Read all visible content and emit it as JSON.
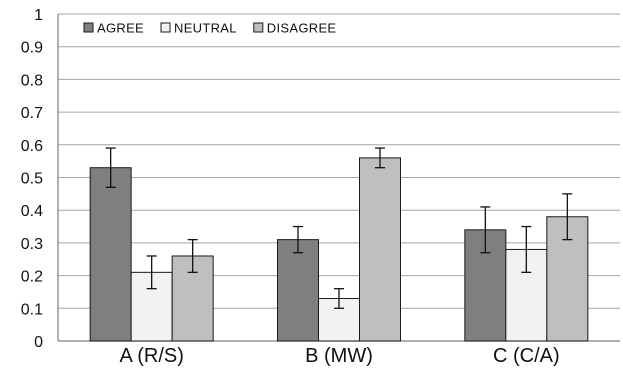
{
  "chart_data": {
    "type": "bar",
    "categories": [
      "A (R/S)",
      "B (MW)",
      "C (C/A)"
    ],
    "series": [
      {
        "name": "AGREE",
        "color": "#7f7f7f",
        "values": [
          0.53,
          0.31,
          0.34
        ],
        "error": [
          0.06,
          0.04,
          0.07
        ]
      },
      {
        "name": "NEUTRAL",
        "color": "#f2f2f2",
        "values": [
          0.21,
          0.13,
          0.28
        ],
        "error": [
          0.05,
          0.03,
          0.07
        ]
      },
      {
        "name": "DISAGREE",
        "color": "#bfbfbf",
        "values": [
          0.26,
          0.56,
          0.38
        ],
        "error": [
          0.05,
          0.03,
          0.07
        ]
      }
    ],
    "yticks": [
      "0",
      "0.1",
      "0.2",
      "0.3",
      "0.4",
      "0.5",
      "0.6",
      "0.7",
      "0.8",
      "0.9",
      "1"
    ],
    "ylim": [
      0,
      1
    ],
    "grid": true,
    "legend_position": "top-left",
    "title": "",
    "xlabel": "",
    "ylabel": ""
  }
}
